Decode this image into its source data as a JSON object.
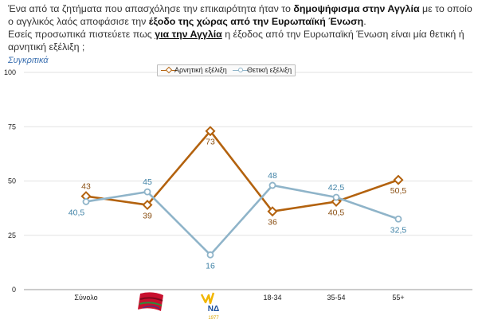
{
  "header": {
    "q1_parts": [
      {
        "t": "Ένα από τα ζητήματα που απασχόλησε την επικαιρότητα ήταν το ",
        "b": false,
        "u": false
      },
      {
        "t": "δημοψήφισμα στην Αγγλία",
        "b": true,
        "u": false
      },
      {
        "t": " με το οποίο ο αγγλικός λαός αποφάσισε την ",
        "b": false,
        "u": false
      },
      {
        "t": "έξοδο της χώρας από την Ευρωπαϊκή Ένωση",
        "b": true,
        "u": false
      },
      {
        "t": ".",
        "b": false,
        "u": false
      }
    ],
    "q2_parts": [
      {
        "t": "Εσείς προσωπικά πιστεύετε πως ",
        "b": false,
        "u": false
      },
      {
        "t": "για την Αγγλία",
        "b": true,
        "u": true
      },
      {
        "t": " η έξοδος από την Ευρωπαϊκή Ένωση είναι μία θετική ή αρνητική εξέλιξη ;",
        "b": false,
        "u": false
      }
    ],
    "subtitle": "Συγκριτικά"
  },
  "chart_data": {
    "type": "line",
    "categories": [
      "Σύνολο",
      "ΣΥΡΙΖΑ",
      "ΝΔ",
      "18-34",
      "35-54",
      "55+"
    ],
    "category_labels": [
      "Σύνολο",
      "",
      "",
      "18-34",
      "35-54",
      "55+"
    ],
    "logo_text": {
      "nd": "ΝΔ",
      "nd_year": "1977"
    },
    "ylim": [
      0,
      100
    ],
    "yticks": [
      0,
      25,
      50,
      75,
      100
    ],
    "ytick_labels": [
      "0",
      "25",
      "50",
      "75",
      "100"
    ],
    "series": [
      {
        "name": "Αρνητική εξέλιξη",
        "color": "#b3620e",
        "marker": "diamond",
        "values": [
          43,
          39,
          73,
          36,
          40.5,
          50.5
        ],
        "labels": [
          "43",
          "39",
          "73",
          "36",
          "40,5",
          "50,5"
        ],
        "label_pos": [
          "above",
          "below",
          "below",
          "below",
          "below",
          "below"
        ]
      },
      {
        "name": "Θετική εξέλιξη",
        "color": "#8fb4c9",
        "marker": "circle",
        "values": [
          40.5,
          45,
          16,
          48,
          42.5,
          32.5
        ],
        "labels": [
          "40,5",
          "45",
          "16",
          "48",
          "42,5",
          "32,5"
        ],
        "label_pos": [
          "below",
          "above",
          "below",
          "above",
          "above",
          "below"
        ]
      }
    ],
    "legend": {
      "position": "top-center"
    }
  }
}
